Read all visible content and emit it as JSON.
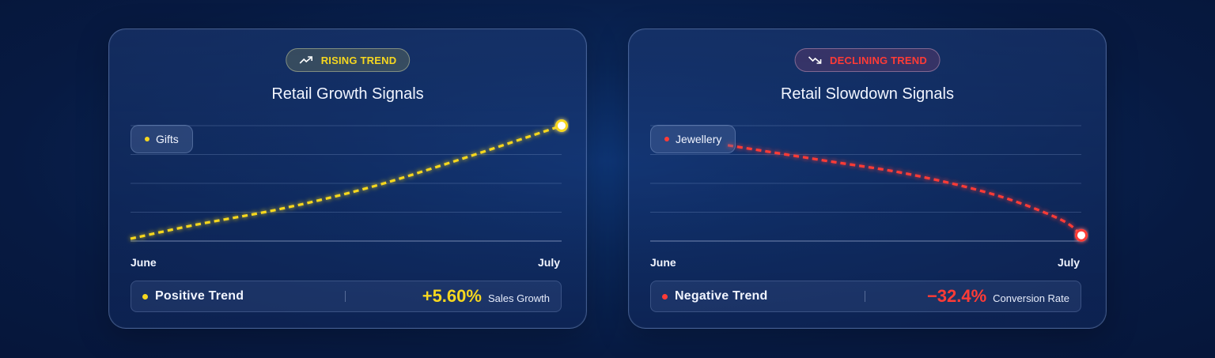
{
  "colors": {
    "rising": "#f6d71f",
    "declining": "#ff3b36",
    "background": "#071a42"
  },
  "charts": [
    {
      "badge": {
        "label": "RISING TREND",
        "icon": "trend-up-icon"
      },
      "title": "Retail Growth Signals",
      "series_label": "Gifts",
      "x_labels": [
        "June",
        "July"
      ],
      "footer": {
        "trend_label": "Positive Trend",
        "metric_value": "+5.60%",
        "metric_label": "Sales Growth"
      }
    },
    {
      "badge": {
        "label": "DECLINING TREND",
        "icon": "trend-down-icon"
      },
      "title": "Retail Slowdown Signals",
      "series_label": "Jewellery",
      "x_labels": [
        "June",
        "July"
      ],
      "footer": {
        "trend_label": "Negative Trend",
        "metric_value": "−32.4%",
        "metric_label": "Conversion Rate"
      }
    }
  ],
  "chart_data": [
    {
      "type": "line",
      "title": "Retail Growth Signals",
      "categories": [
        "June",
        "July"
      ],
      "series": [
        {
          "name": "Gifts",
          "color": "#f6d71f",
          "x": [
            0,
            0.15,
            0.35,
            0.55,
            0.75,
            1.0
          ],
          "y": [
            0.02,
            0.14,
            0.28,
            0.46,
            0.69,
            1.0
          ]
        }
      ],
      "ylim": [
        0,
        1
      ],
      "grid": true,
      "line_style": "dashed",
      "summary": {
        "label": "Positive Trend",
        "value": 5.6,
        "unit": "%",
        "metric": "Sales Growth"
      }
    },
    {
      "type": "line",
      "title": "Retail Slowdown Signals",
      "categories": [
        "June",
        "July"
      ],
      "series": [
        {
          "name": "Jewellery",
          "color": "#ff3b36",
          "x": [
            0.18,
            0.4,
            0.6,
            0.8,
            0.95,
            1.0
          ],
          "y": [
            0.83,
            0.7,
            0.58,
            0.4,
            0.19,
            0.05
          ]
        }
      ],
      "ylim": [
        0,
        1
      ],
      "grid": true,
      "line_style": "dashed",
      "summary": {
        "label": "Negative Trend",
        "value": -32.4,
        "unit": "%",
        "metric": "Conversion Rate"
      }
    }
  ]
}
